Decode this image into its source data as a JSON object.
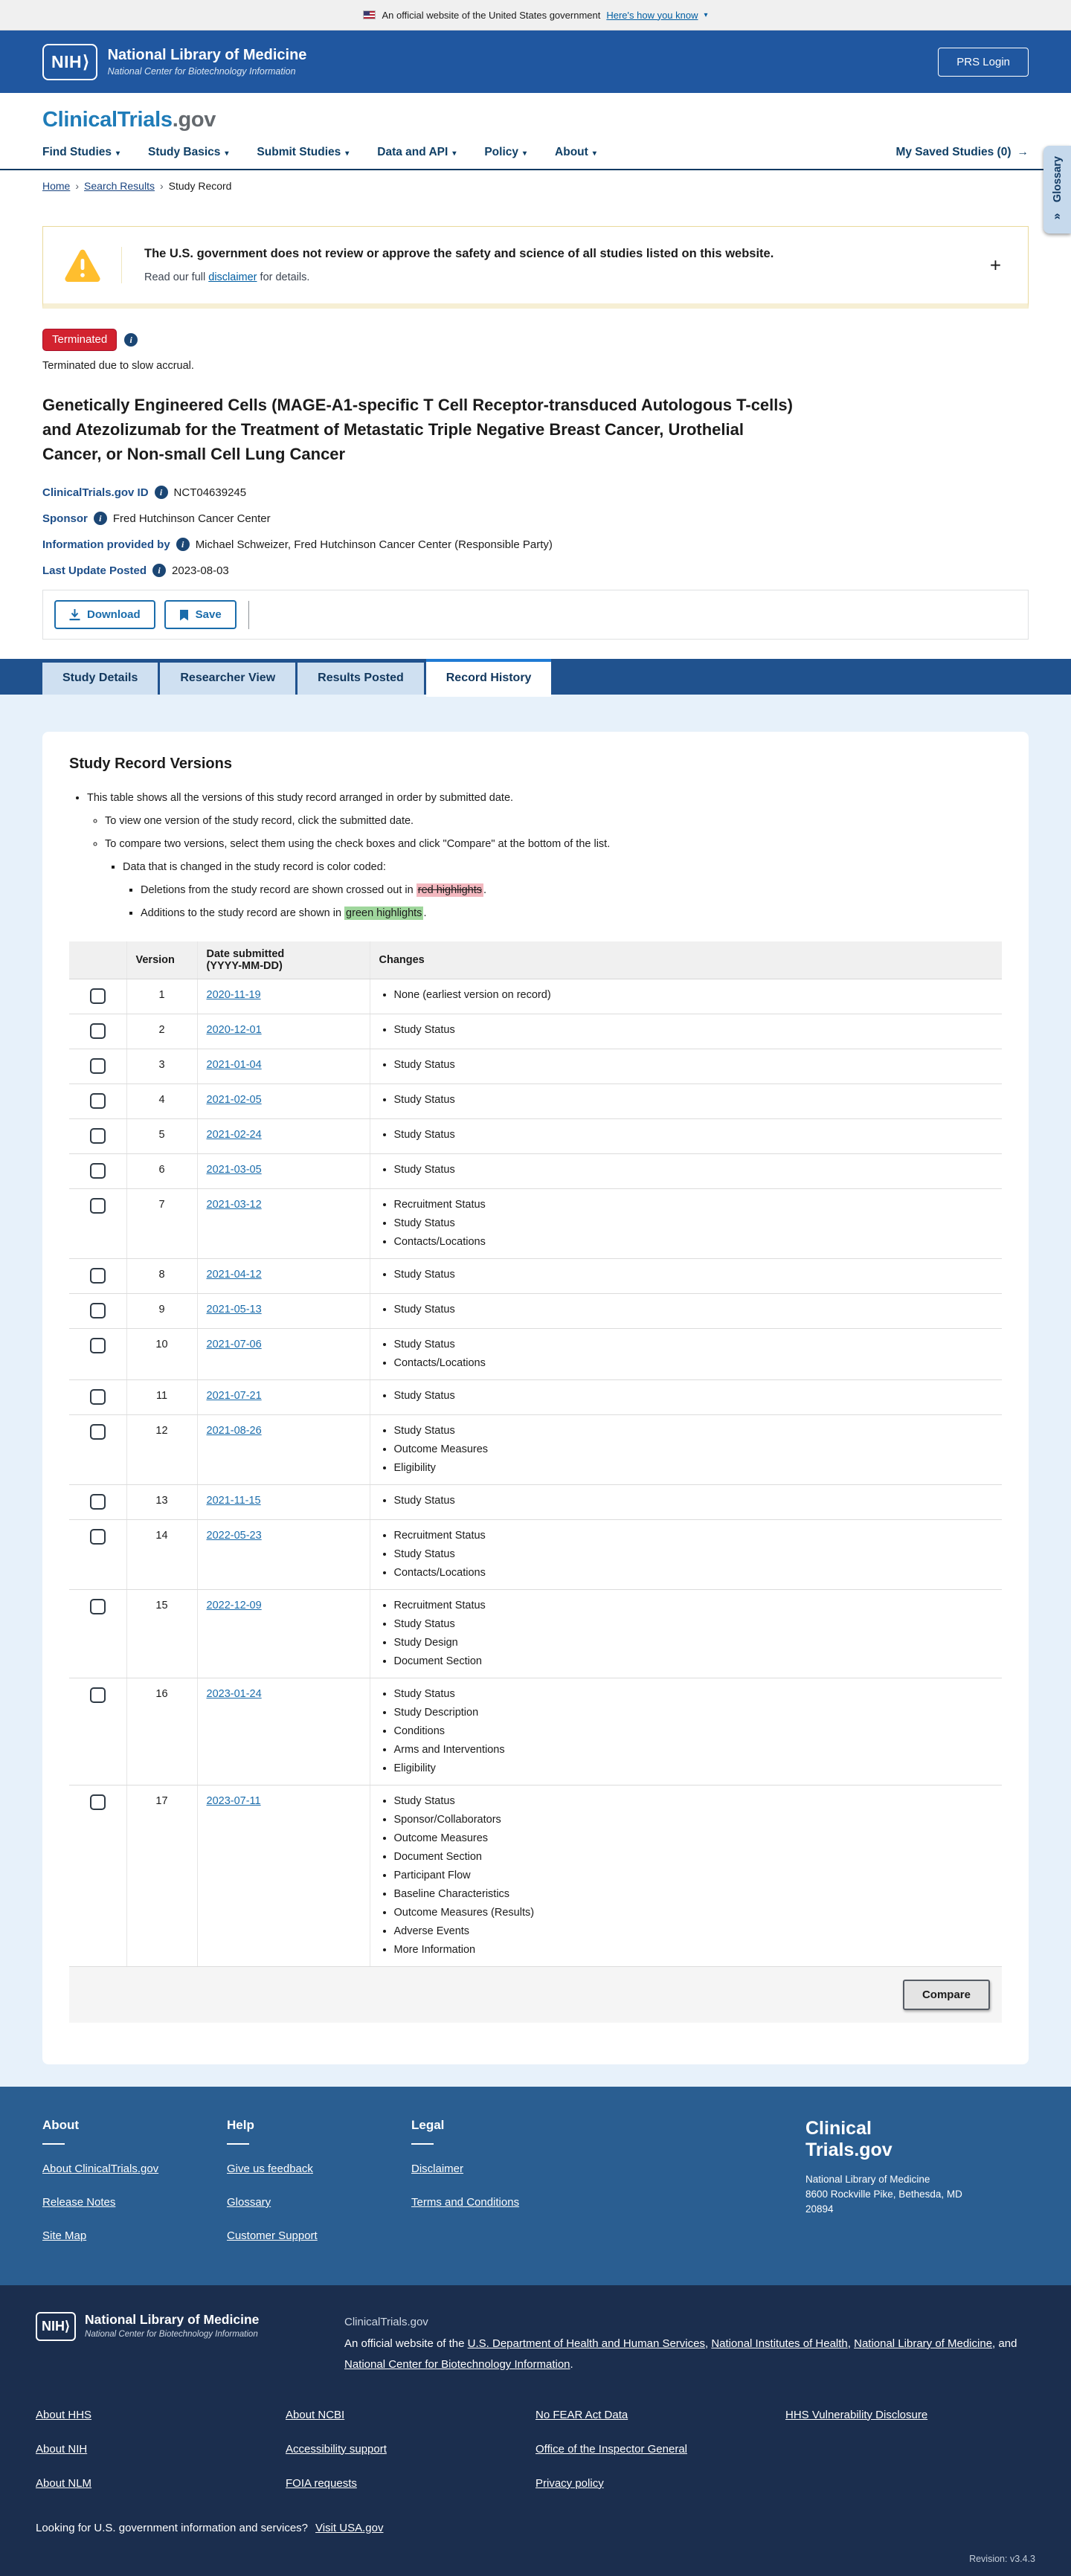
{
  "colors": {
    "header_blue": "#2057a0",
    "tabbar_blue": "#20528e",
    "status_red": "#d2222f",
    "link_blue": "#1a6cab",
    "red_highlight": "#f3b8bf",
    "green_highlight": "#9fd69c",
    "footer_blue": "#2a5e91",
    "subfooter_navy": "#1b2e4e"
  },
  "banner": {
    "official_text": "An official website of the United States government",
    "how_link": "Here's how you know"
  },
  "header": {
    "nih_acronym": "NIH",
    "nlm_title": "National Library of Medicine",
    "ncbi_subtitle": "National Center for Biotechnology Information",
    "prs_login": "PRS Login"
  },
  "site": {
    "logo_primary": "ClinicalTrials",
    "logo_suffix": ".gov",
    "nav": [
      "Find Studies",
      "Study Basics",
      "Submit Studies",
      "Data and API",
      "Policy",
      "About"
    ],
    "saved_studies": "My Saved Studies (0)"
  },
  "breadcrumb": {
    "home": "Home",
    "search_results": "Search Results",
    "current": "Study Record"
  },
  "glossary_tab": "Glossary",
  "warning": {
    "title": "The U.S. government does not review or approve the safety and science of all studies listed on this website.",
    "body_prefix": "Read our full ",
    "link": "disclaimer",
    "body_suffix": " for details."
  },
  "study": {
    "status": "Terminated",
    "status_note": "Terminated due to slow accrual.",
    "title": "Genetically Engineered Cells (MAGE-A1-specific T Cell Receptor-transduced Autologous T-cells) and Atezolizumab for the Treatment of Metastatic Triple Negative Breast Cancer, Urothelial Cancer, or Non-small Cell Lung Cancer",
    "id_label": "ClinicalTrials.gov ID",
    "id_value": "NCT04639245",
    "sponsor_label": "Sponsor",
    "sponsor_value": "Fred Hutchinson Cancer Center",
    "info_label": "Information provided by",
    "info_value": "Michael Schweizer, Fred Hutchinson Cancer Center (Responsible Party)",
    "updated_label": "Last Update Posted",
    "updated_value": "2023-08-03"
  },
  "actions": {
    "download": "Download",
    "save": "Save"
  },
  "tabs": [
    {
      "label": "Study Details",
      "active": false
    },
    {
      "label": "Researcher View",
      "active": false
    },
    {
      "label": "Results Posted",
      "active": false
    },
    {
      "label": "Record History",
      "active": true
    }
  ],
  "versions": {
    "heading": "Study Record Versions",
    "bullet1": "This table shows all the versions of this study record arranged in order by submitted date.",
    "bullet2": "To view one version of the study record, click the submitted date.",
    "bullet3": "To compare two versions, select them using the check boxes and click \"Compare\" at the bottom of the list.",
    "bullet4": "Data that is changed in the study record is color coded:",
    "bullet5_prefix": "Deletions from the study record are shown crossed out in ",
    "bullet5_highlight": "red highlights",
    "bullet5_suffix": ".",
    "bullet6_prefix": "Additions to the study record are shown in ",
    "bullet6_highlight": "green highlights",
    "bullet6_suffix": ".",
    "table": {
      "header_version": "Version",
      "header_date_line1": "Date submitted",
      "header_date_line2": "(YYYY-MM-DD)",
      "header_changes": "Changes",
      "rows": [
        {
          "version": "1",
          "date": "2020-11-19",
          "changes": [
            "None (earliest version on record)"
          ]
        },
        {
          "version": "2",
          "date": "2020-12-01",
          "changes": [
            "Study Status"
          ]
        },
        {
          "version": "3",
          "date": "2021-01-04",
          "changes": [
            "Study Status"
          ]
        },
        {
          "version": "4",
          "date": "2021-02-05",
          "changes": [
            "Study Status"
          ]
        },
        {
          "version": "5",
          "date": "2021-02-24",
          "changes": [
            "Study Status"
          ]
        },
        {
          "version": "6",
          "date": "2021-03-05",
          "changes": [
            "Study Status"
          ]
        },
        {
          "version": "7",
          "date": "2021-03-12",
          "changes": [
            "Recruitment Status",
            "Study Status",
            "Contacts/Locations"
          ]
        },
        {
          "version": "8",
          "date": "2021-04-12",
          "changes": [
            "Study Status"
          ]
        },
        {
          "version": "9",
          "date": "2021-05-13",
          "changes": [
            "Study Status"
          ]
        },
        {
          "version": "10",
          "date": "2021-07-06",
          "changes": [
            "Study Status",
            "Contacts/Locations"
          ]
        },
        {
          "version": "11",
          "date": "2021-07-21",
          "changes": [
            "Study Status"
          ]
        },
        {
          "version": "12",
          "date": "2021-08-26",
          "changes": [
            "Study Status",
            "Outcome Measures",
            "Eligibility"
          ]
        },
        {
          "version": "13",
          "date": "2021-11-15",
          "changes": [
            "Study Status"
          ]
        },
        {
          "version": "14",
          "date": "2022-05-23",
          "changes": [
            "Recruitment Status",
            "Study Status",
            "Contacts/Locations"
          ]
        },
        {
          "version": "15",
          "date": "2022-12-09",
          "changes": [
            "Recruitment Status",
            "Study Status",
            "Study Design",
            "Document Section"
          ]
        },
        {
          "version": "16",
          "date": "2023-01-24",
          "changes": [
            "Study Status",
            "Study Description",
            "Conditions",
            "Arms and Interventions",
            "Eligibility"
          ]
        },
        {
          "version": "17",
          "date": "2023-07-11",
          "changes": [
            "Study Status",
            "Sponsor/Collaborators",
            "Outcome Measures",
            "Document Section",
            "Participant Flow",
            "Baseline Characteristics",
            "Outcome Measures (Results)",
            "Adverse Events",
            "More Information"
          ]
        }
      ]
    },
    "compare": "Compare"
  },
  "footer": {
    "columns": [
      {
        "heading": "About",
        "links": [
          "About ClinicalTrials.gov",
          "Release Notes",
          "Site Map"
        ]
      },
      {
        "heading": "Help",
        "links": [
          "Give us feedback",
          "Glossary",
          "Customer Support"
        ]
      },
      {
        "heading": "Legal",
        "links": [
          "Disclaimer",
          "Terms and Conditions"
        ]
      }
    ],
    "brand_line1": "Clinical",
    "brand_line2": "Trials.gov",
    "address_line1": "National Library of Medicine",
    "address_line2": "8600 Rockville Pike, Bethesda, MD",
    "address_line3": "20894"
  },
  "subfooter": {
    "nih_acronym": "NIH",
    "nlm_title": "National Library of Medicine",
    "ncbi_subtitle": "National Center for Biotechnology Information",
    "site_name": "ClinicalTrials.gov",
    "desc_parts": [
      {
        "text": "An official website of the "
      },
      {
        "link": "U.S. Department of Health and Human Services"
      },
      {
        "text": ", "
      },
      {
        "link": "National Institutes of Health"
      },
      {
        "text": ", "
      },
      {
        "link": "National Library of Medicine"
      },
      {
        "text": ", and "
      },
      {
        "link": "National Center for Biotechnology Information"
      },
      {
        "text": "."
      }
    ],
    "link_columns": [
      [
        "About HHS",
        "About NIH",
        "About NLM"
      ],
      [
        "About NCBI",
        "Accessibility support",
        "FOIA requests"
      ],
      [
        "No FEAR Act Data",
        "Office of the Inspector General",
        "Privacy policy"
      ],
      [
        "HHS Vulnerability Disclosure"
      ]
    ],
    "usa_text": "Looking for U.S. government information and services?",
    "usa_link": "Visit USA.gov",
    "revision": "Revision: v3.4.3"
  }
}
